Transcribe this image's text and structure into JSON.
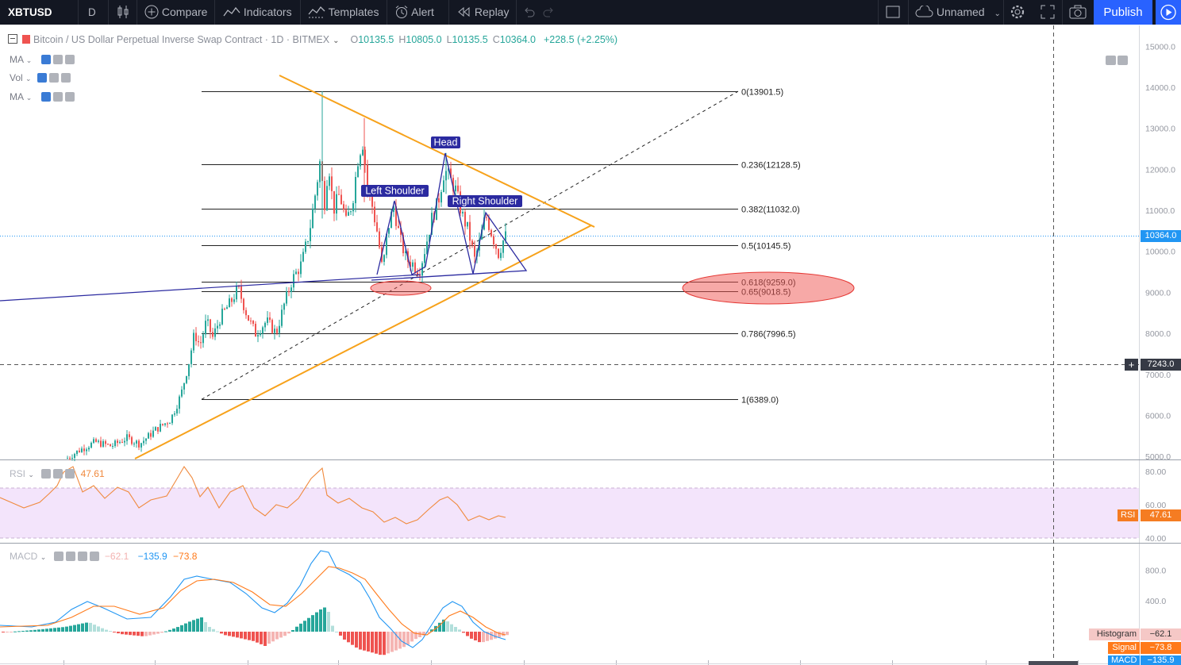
{
  "toolbar": {
    "symbol": "XBTUSD",
    "interval": "D",
    "compare": "Compare",
    "indicators": "Indicators",
    "templates": "Templates",
    "alert": "Alert",
    "replay": "Replay",
    "layout_name": "Unnamed",
    "publish": "Publish"
  },
  "legend": {
    "title": "Bitcoin / US Dollar Perpetual Inverse Swap Contract · 1D · BITMEX",
    "open_label": "O",
    "open": "10135.5",
    "high_label": "H",
    "high": "10805.0",
    "low_label": "L",
    "low": "10135.5",
    "close_label": "C",
    "close": "10364.0",
    "change": "+228.5 (+2.25%)"
  },
  "overlays": [
    {
      "name": "MA"
    },
    {
      "name": "Vol"
    },
    {
      "name": "MA"
    }
  ],
  "fib_levels": [
    {
      "label": "0(13901.5)",
      "price": 13901.5
    },
    {
      "label": "0.236(12128.5)",
      "price": 12128.5
    },
    {
      "label": "0.382(11032.0)",
      "price": 11032.0
    },
    {
      "label": "0.5(10145.5)",
      "price": 10145.5
    },
    {
      "label": "0.618(9259.0)",
      "price": 9259.0
    },
    {
      "label": "0.65(9018.5)",
      "price": 9018.5
    },
    {
      "label": "0.786(7996.5)",
      "price": 7996.5
    },
    {
      "label": "1(6389.0)",
      "price": 6389.0
    }
  ],
  "annotations": {
    "head": "Head",
    "left_shoulder": "Left Shoulder",
    "right_shoulder": "Right Shoulder"
  },
  "price_axis": {
    "ticks": [
      "15000.0",
      "14000.0",
      "13000.0",
      "12000.0",
      "11000.0",
      "10000.0",
      "9000.0",
      "8000.0",
      "7000.0",
      "6000.0",
      "5000.0"
    ],
    "last_price": "10364.0",
    "crosshair_price": "7243.0"
  },
  "rsi": {
    "name": "RSI",
    "value": "47.61",
    "ticks": [
      "80.00",
      "60.00",
      "40.00"
    ],
    "tag_name": "RSI",
    "tag_value": "47.61"
  },
  "macd": {
    "name": "MACD",
    "histogram": "−62.1",
    "macd": "−135.9",
    "signal": "−73.8",
    "ticks": [
      "800.0",
      "400.0"
    ],
    "histogram_label": "Histogram",
    "histogram_tag": "−62.1",
    "signal_label": "Signal",
    "signal_tag": "−73.8",
    "macd_label": "MACD",
    "macd_tag": "−135.9"
  },
  "colors": {
    "toolbar_bg": "#131722",
    "accent": "#2962ff",
    "up": "#26a69a",
    "down": "#ef5350",
    "triangle": "#f7a21b",
    "pattern": "#2b2aa0",
    "rsi_line": "#f08a3e",
    "rsi_band": "#f3e4fb",
    "macd_line": "#2196f3",
    "signal_line": "#ff7a1a"
  }
}
